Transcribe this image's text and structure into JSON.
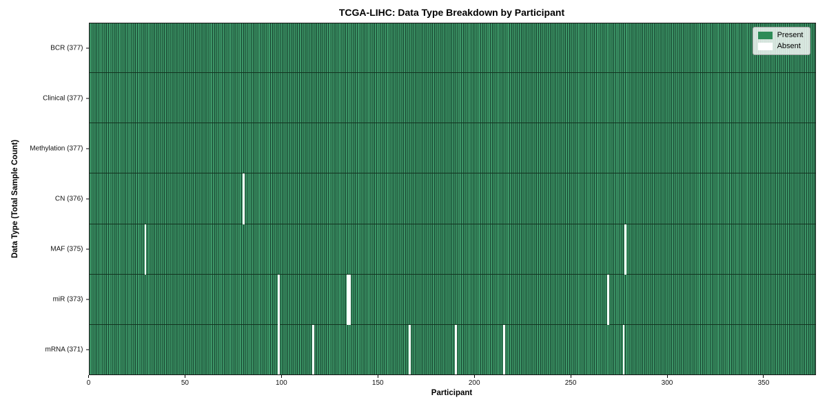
{
  "chart_data": {
    "type": "heatmap",
    "title": "TCGA-LIHC: Data Type Breakdown by Participant",
    "xlabel": "Participant",
    "ylabel": "Data Type (Total Sample Count)",
    "n_participants": 377,
    "xlim": [
      0,
      377
    ],
    "x_ticks": [
      0,
      50,
      100,
      150,
      200,
      250,
      300,
      350
    ],
    "grid": false,
    "legend_position": "upper right",
    "legend_items": [
      {
        "label": "Present",
        "color": "#2e8b57"
      },
      {
        "label": "Absent",
        "color": "#ffffff"
      }
    ],
    "rows": [
      {
        "label": "BCR (377)",
        "data_type": "BCR",
        "present_count": 377,
        "absent_participants": []
      },
      {
        "label": "Clinical (377)",
        "data_type": "Clinical",
        "present_count": 377,
        "absent_participants": []
      },
      {
        "label": "Methylation (377)",
        "data_type": "Methylation",
        "present_count": 377,
        "absent_participants": []
      },
      {
        "label": "CN (376)",
        "data_type": "CN",
        "present_count": 376,
        "absent_participants": [
          80
        ]
      },
      {
        "label": "MAF (375)",
        "data_type": "MAF",
        "present_count": 375,
        "absent_participants": [
          29,
          278
        ]
      },
      {
        "label": "miR (373)",
        "data_type": "miR",
        "present_count": 373,
        "absent_participants": [
          98,
          134,
          135,
          269
        ]
      },
      {
        "label": "mRNA (371)",
        "data_type": "mRNA",
        "present_count": 371,
        "absent_participants": [
          98,
          116,
          166,
          190,
          215,
          277
        ]
      }
    ]
  }
}
